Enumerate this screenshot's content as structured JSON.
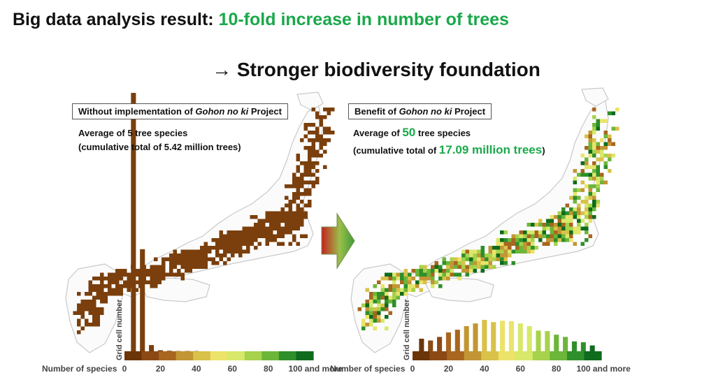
{
  "header": {
    "title_prefix": "Big data analysis result: ",
    "title_highlight": "10-fold increase in number of trees",
    "subtitle": "→ Stronger biodiversity foundation"
  },
  "left_panel": {
    "caption_prefix": "Without implementation of ",
    "caption_italic": "Gohon no ki",
    "caption_suffix": " Project",
    "avg_line": "Average of 5 tree species",
    "total_line": "(cumulative total of 5.42 million trees)"
  },
  "right_panel": {
    "caption_prefix": "Benefit of ",
    "caption_italic": "Gohon no ki",
    "caption_suffix": " Project",
    "avg_prefix": "Average of ",
    "avg_value": "50",
    "avg_suffix": " tree species",
    "total_prefix": "(cumulative total of ",
    "total_value": "17.09 million trees",
    "total_suffix": ")"
  },
  "colors": {
    "highlight": "#1aa84a",
    "brown": "#7a3f0c",
    "scale": [
      "#6b3508",
      "#8b4a14",
      "#a8661f",
      "#c29634",
      "#d9c14a",
      "#ebe36a",
      "#d8e86a",
      "#a6d24c",
      "#6cb63a",
      "#2f8f2a",
      "#0f6b1e"
    ]
  },
  "chart_data": [
    {
      "type": "bar",
      "panel": "left",
      "xlabel": "Number of species",
      "ylabel": "Grid cell number",
      "tick_labels": [
        "0",
        "20",
        "40",
        "60",
        "80",
        "100 and more"
      ],
      "x": [
        5,
        10,
        15,
        20,
        25,
        30,
        35,
        40,
        45,
        50,
        55,
        60,
        65,
        70,
        75,
        80,
        85,
        90,
        95,
        100
      ],
      "values": [
        1000,
        395,
        24,
        4,
        2,
        1,
        1,
        1,
        0,
        0,
        0,
        0,
        0,
        0,
        0,
        0,
        0,
        0,
        0,
        0
      ],
      "xlim": [
        0,
        105
      ]
    },
    {
      "type": "bar",
      "panel": "right",
      "xlabel": "Number of species",
      "ylabel": "Grid cell number",
      "tick_labels": [
        "0",
        "20",
        "40",
        "60",
        "80",
        "100 and more"
      ],
      "x": [
        5,
        10,
        15,
        20,
        25,
        30,
        35,
        40,
        45,
        50,
        55,
        60,
        65,
        70,
        75,
        80,
        85,
        90,
        95,
        100
      ],
      "values": [
        28,
        24,
        32,
        42,
        48,
        56,
        62,
        70,
        65,
        68,
        67,
        62,
        56,
        46,
        45,
        37,
        32,
        22,
        20,
        13
      ],
      "xlim": [
        0,
        105
      ]
    }
  ]
}
